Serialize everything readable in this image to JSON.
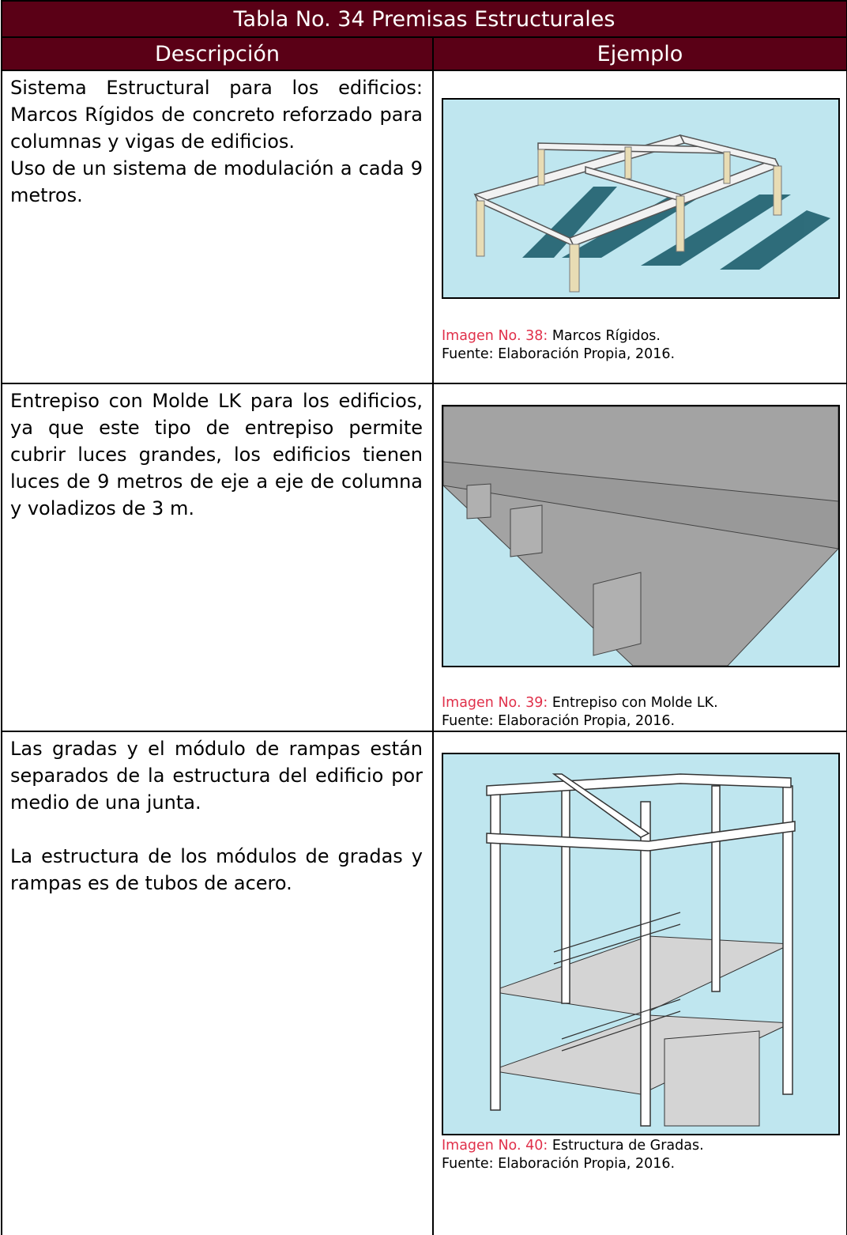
{
  "table": {
    "title": "Tabla No. 34 Premisas Estructurales",
    "headers": [
      "Descripción",
      "Ejemplo"
    ],
    "rows": [
      {
        "description": [
          "Sistema Estructural para los edificios: Marcos Rígidos de concreto reforzado para columnas y vigas de edificios.",
          "Uso de un sistema de modulación a cada 9 metros."
        ],
        "caption": {
          "label": "Imagen No. 38:",
          "text": "Marcos Rígidos.",
          "source": "Fuente: Elaboración Propia, 2016."
        }
      },
      {
        "description": [
          "Entrepiso con Molde LK para los edificios, ya que este tipo de entrepiso permite cubrir luces grandes, los edificios tienen luces de 9 metros de eje a eje de columna y voladizos de 3 m."
        ],
        "caption": {
          "label": "Imagen No. 39:",
          "text": "Entrepiso con Molde LK.",
          "source": "Fuente: Elaboración Propia, 2016."
        }
      },
      {
        "description": [
          "Las gradas y el módulo de rampas están separados de la estructura del edificio por medio de una junta.",
          "La estructura de los módulos de gradas y rampas es de tubos de acero."
        ],
        "caption": {
          "label": "Imagen No. 40:",
          "text": "Estructura de Gradas.",
          "source": "Fuente: Elaboración Propia, 2016."
        }
      }
    ]
  }
}
